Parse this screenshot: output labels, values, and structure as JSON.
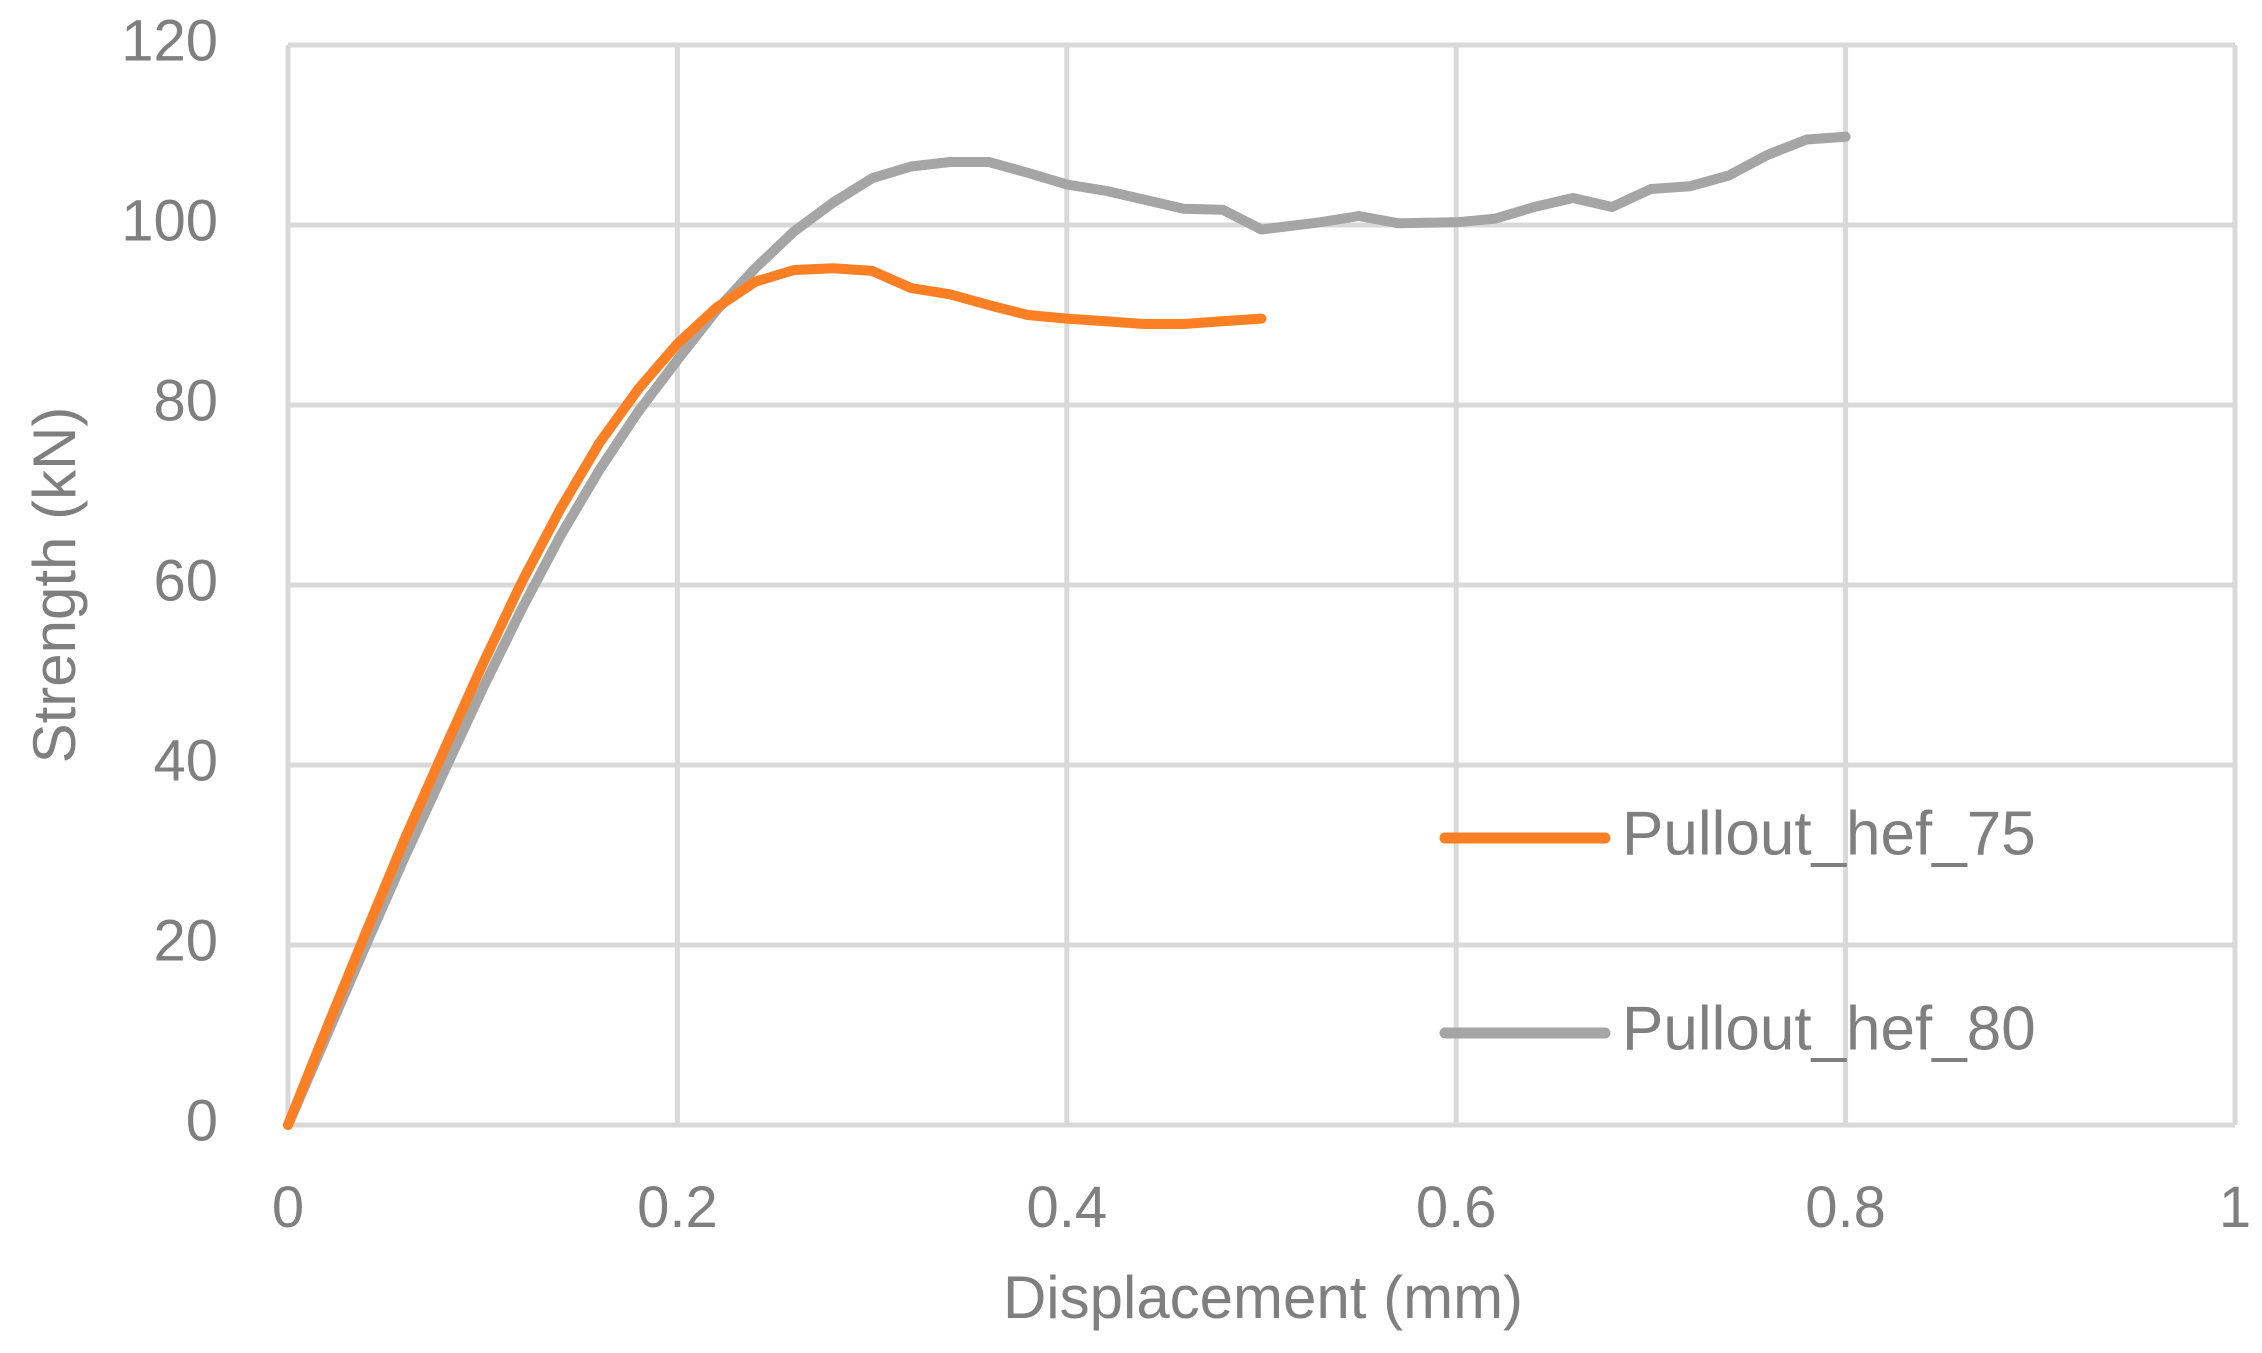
{
  "chart_data": {
    "type": "line",
    "title": "",
    "xlabel": "Displacement (mm)",
    "ylabel": "Strength (kN)",
    "xlim": [
      0,
      1
    ],
    "ylim": [
      0,
      120
    ],
    "x_ticks": [
      "0",
      "0.2",
      "0.4",
      "0.6",
      "0.8",
      "1"
    ],
    "y_ticks": [
      "0",
      "20",
      "40",
      "60",
      "80",
      "100",
      "120"
    ],
    "grid": true,
    "legend_position": "right",
    "series": [
      {
        "name": "Pullout_hef_75",
        "color": "#fd7f24",
        "points": [
          [
            0,
            0
          ],
          [
            0.02,
            10.8
          ],
          [
            0.04,
            21.4
          ],
          [
            0.06,
            31.8
          ],
          [
            0.08,
            41.6
          ],
          [
            0.1,
            51.2
          ],
          [
            0.12,
            60.3
          ],
          [
            0.14,
            68.5
          ],
          [
            0.16,
            75.8
          ],
          [
            0.18,
            81.8
          ],
          [
            0.2,
            86.8
          ],
          [
            0.22,
            90.8
          ],
          [
            0.24,
            93.7
          ],
          [
            0.26,
            95.0
          ],
          [
            0.28,
            95.2
          ],
          [
            0.3,
            94.9
          ],
          [
            0.32,
            93.0
          ],
          [
            0.34,
            92.3
          ],
          [
            0.36,
            91.1
          ],
          [
            0.38,
            90.0
          ],
          [
            0.4,
            89.6
          ],
          [
            0.42,
            89.3
          ],
          [
            0.44,
            89.0
          ],
          [
            0.46,
            89.0
          ],
          [
            0.48,
            89.3
          ],
          [
            0.5,
            89.6
          ]
        ]
      },
      {
        "name": "Pullout_hef_80",
        "color": "#a5a5a5",
        "points": [
          [
            0,
            0
          ],
          [
            0.02,
            10.0
          ],
          [
            0.04,
            20.0
          ],
          [
            0.06,
            29.8
          ],
          [
            0.08,
            39.2
          ],
          [
            0.1,
            48.5
          ],
          [
            0.12,
            57.3
          ],
          [
            0.14,
            65.5
          ],
          [
            0.16,
            72.8
          ],
          [
            0.18,
            79.3
          ],
          [
            0.2,
            85.0
          ],
          [
            0.22,
            90.5
          ],
          [
            0.24,
            95.2
          ],
          [
            0.26,
            99.3
          ],
          [
            0.28,
            102.5
          ],
          [
            0.3,
            105.2
          ],
          [
            0.32,
            106.5
          ],
          [
            0.34,
            107.0
          ],
          [
            0.36,
            107.0
          ],
          [
            0.38,
            105.8
          ],
          [
            0.4,
            104.5
          ],
          [
            0.42,
            103.8
          ],
          [
            0.44,
            102.8
          ],
          [
            0.46,
            101.8
          ],
          [
            0.48,
            101.7
          ],
          [
            0.5,
            99.5
          ],
          [
            0.53,
            100.3
          ],
          [
            0.55,
            101.0
          ],
          [
            0.57,
            100.2
          ],
          [
            0.6,
            100.3
          ],
          [
            0.62,
            100.7
          ],
          [
            0.64,
            102.0
          ],
          [
            0.66,
            103.0
          ],
          [
            0.68,
            102.0
          ],
          [
            0.7,
            104.0
          ],
          [
            0.72,
            104.3
          ],
          [
            0.74,
            105.5
          ],
          [
            0.76,
            107.8
          ],
          [
            0.78,
            109.5
          ],
          [
            0.8,
            109.8
          ]
        ]
      }
    ]
  }
}
